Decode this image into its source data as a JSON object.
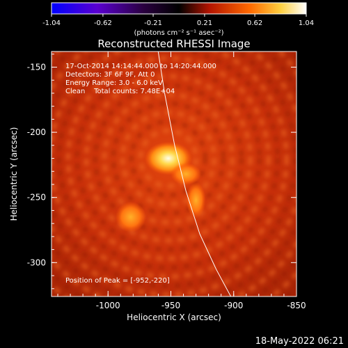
{
  "colorbar": {
    "ticks": [
      "-1.04",
      "-0.62",
      "-0.21",
      "0.21",
      "0.62",
      "1.04"
    ],
    "tick_values": [
      -1.04,
      -0.62,
      -0.21,
      0.21,
      0.62,
      1.04
    ],
    "range": [
      -1.04,
      1.04
    ],
    "unit_label": "(photons cm⁻² s⁻¹ asec⁻²)",
    "colors": [
      "#0000ff",
      "#6a00c8",
      "#000000",
      "#c81e00",
      "#ff8c00",
      "#ffff96",
      "#ffffff"
    ]
  },
  "plot": {
    "title": "Reconstructed RHESSI Image",
    "info_lines": [
      "17-Oct-2014 14:14:44.000 to 14:20:44.000",
      "Detectors: 3F 6F 9F, Att 0",
      "Energy Range: 3.0 - 6.0 keV",
      "Clean    Total counts: 7.48E+04"
    ],
    "peak_label": "Position of Peak = [-952,-220]",
    "xlabel": "Heliocentric X (arcsec)",
    "ylabel": "Heliocentric Y (arcsec)",
    "xticks": [
      "-1000",
      "-950",
      "-900",
      "-850"
    ],
    "xtick_values": [
      -1000,
      -950,
      -900,
      -850
    ],
    "yticks": [
      "-150",
      "-200",
      "-250",
      "-300"
    ],
    "ytick_values": [
      -150,
      -200,
      -250,
      -300
    ],
    "xlim": [
      -1045,
      -850
    ],
    "ylim": [
      -326,
      -138
    ],
    "limb_color": "#ffffff",
    "sources": [
      {
        "x": -952,
        "y": -220,
        "level": 1.0
      },
      {
        "x": -932,
        "y": -245,
        "level": 0.55
      },
      {
        "x": -982,
        "y": -265,
        "level": 0.6
      }
    ]
  },
  "footer": {
    "timestamp": "18-May-2022 06:21"
  }
}
